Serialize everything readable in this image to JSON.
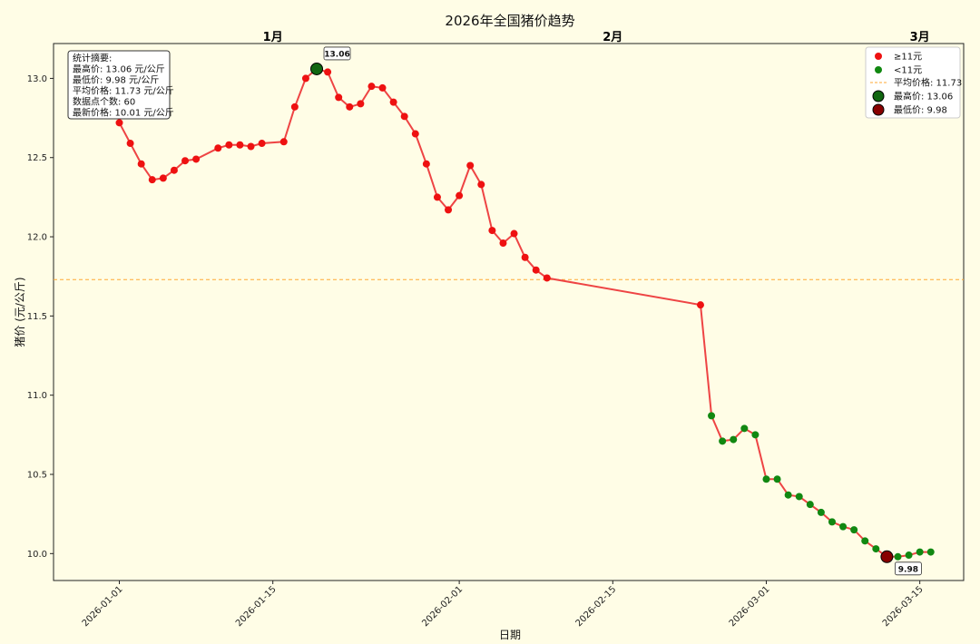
{
  "chart_data": {
    "type": "line",
    "title": "2026年全国猪价趋势",
    "xlabel": "日期",
    "ylabel": "猪价 (元/公斤)",
    "xlim": [
      "2025-12-26",
      "2026-03-19"
    ],
    "ylim": [
      9.83,
      13.22
    ],
    "x_ticks": [
      "2026-01-01",
      "2026-01-15",
      "2026-02-01",
      "2026-02-15",
      "2026-03-01",
      "2026-03-15"
    ],
    "y_ticks": [
      10.0,
      10.5,
      11.0,
      11.5,
      12.0,
      12.5,
      13.0
    ],
    "months": [
      {
        "label": "1月",
        "date": "2026-01-15"
      },
      {
        "label": "2月",
        "date": "2026-02-15"
      },
      {
        "label": "3月",
        "date": "2026-03-15"
      }
    ],
    "threshold": 11,
    "colors": {
      "line": "#ee4444",
      "high": "#ee1111",
      "low": "#118811",
      "avg_line": "#ffaa33",
      "max_marker": "#116611",
      "min_marker": "#880000"
    },
    "avg_line": {
      "value": 11.73,
      "label": "平均价格: 11.73"
    },
    "max_point": {
      "date": "2026-01-19",
      "value": 13.06,
      "label": "13.06",
      "legend": "最高价: 13.06"
    },
    "min_point": {
      "date": "2026-03-12",
      "value": 9.98,
      "label": "9.98",
      "legend": "最低价: 9.98"
    },
    "legend": {
      "position": "top-right",
      "high_label": "≥11元",
      "low_label": "<11元"
    },
    "stats_box": {
      "position": "top-left",
      "lines": [
        "统计摘要:",
        "最高价: 13.06 元/公斤",
        "最低价: 9.98 元/公斤",
        "平均价格: 11.73 元/公斤",
        "数据点个数: 60",
        "最新价格: 10.01 元/公斤"
      ]
    },
    "series": [
      {
        "x": [
          "2026-01-01",
          "2026-01-02",
          "2026-01-03",
          "2026-01-04",
          "2026-01-05",
          "2026-01-06",
          "2026-01-07",
          "2026-01-08",
          "2026-01-10",
          "2026-01-11",
          "2026-01-12",
          "2026-01-13",
          "2026-01-14",
          "2026-01-16",
          "2026-01-17",
          "2026-01-18",
          "2026-01-19",
          "2026-01-20",
          "2026-01-21",
          "2026-01-22",
          "2026-01-23",
          "2026-01-24",
          "2026-01-25",
          "2026-01-26",
          "2026-01-27",
          "2026-01-28",
          "2026-01-29",
          "2026-01-30",
          "2026-01-31",
          "2026-02-01",
          "2026-02-02",
          "2026-02-03",
          "2026-02-04",
          "2026-02-05",
          "2026-02-06",
          "2026-02-07",
          "2026-02-08",
          "2026-02-09",
          "2026-02-23",
          "2026-02-24",
          "2026-02-25",
          "2026-02-26",
          "2026-02-27",
          "2026-02-28",
          "2026-03-01",
          "2026-03-02",
          "2026-03-03",
          "2026-03-04",
          "2026-03-05",
          "2026-03-06",
          "2026-03-07",
          "2026-03-08",
          "2026-03-09",
          "2026-03-10",
          "2026-03-11",
          "2026-03-12",
          "2026-03-13",
          "2026-03-14",
          "2026-03-15",
          "2026-03-16"
        ],
        "values": [
          12.72,
          12.59,
          12.46,
          12.36,
          12.37,
          12.42,
          12.48,
          12.49,
          12.56,
          12.58,
          12.58,
          12.57,
          12.59,
          12.6,
          12.82,
          13.0,
          13.06,
          13.04,
          12.88,
          12.82,
          12.84,
          12.95,
          12.94,
          12.85,
          12.76,
          12.65,
          12.46,
          12.25,
          12.17,
          12.26,
          12.45,
          12.33,
          12.04,
          11.96,
          12.02,
          11.87,
          11.79,
          11.74,
          11.57,
          10.87,
          10.71,
          10.72,
          10.79,
          10.75,
          10.47,
          10.47,
          10.37,
          10.36,
          10.31,
          10.26,
          10.2,
          10.17,
          10.15,
          10.08,
          10.03,
          9.98,
          9.98,
          9.99,
          10.01,
          10.01
        ]
      }
    ]
  }
}
